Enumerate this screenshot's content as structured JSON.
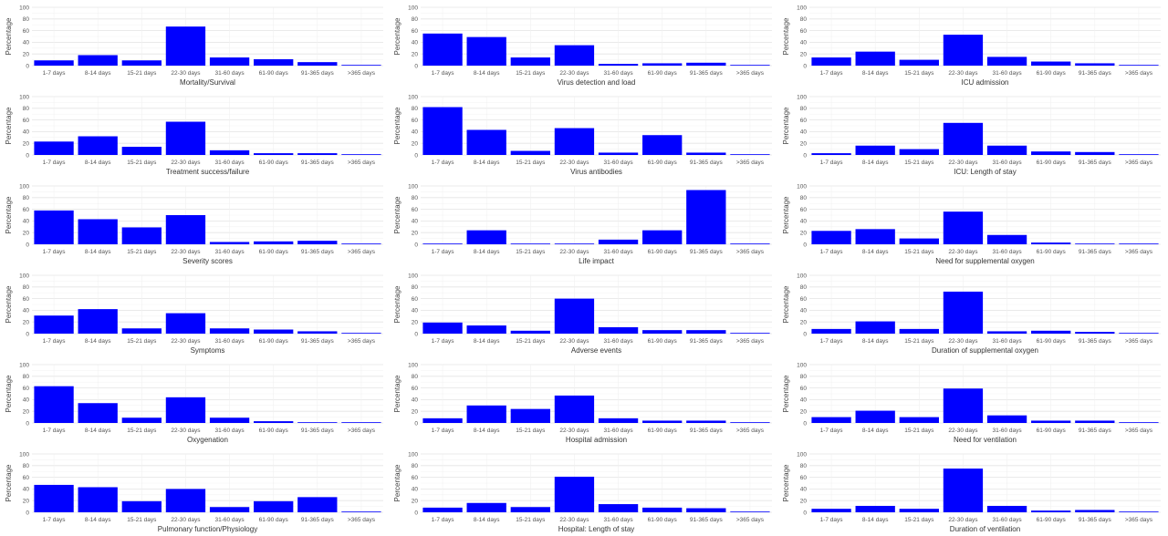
{
  "ylabel": "Percentage",
  "yticks": [
    "0",
    "20",
    "40",
    "60",
    "80",
    "100"
  ],
  "chart_data": [
    {
      "type": "bar",
      "title": "Mortality/Survival",
      "ylabel": "Percentage",
      "ylim": [
        0,
        100
      ],
      "categories": [
        "1-7 days",
        "8-14 days",
        "15-21 days",
        "22-30 days",
        "31-60 days",
        "61-90 days",
        "91-365 days",
        ">365 days"
      ],
      "values": [
        9,
        18,
        9,
        67,
        14,
        11,
        6,
        1
      ],
      "color": "#0000ff"
    },
    {
      "type": "bar",
      "title": "Virus detection and load",
      "ylabel": "Percentage",
      "ylim": [
        0,
        100
      ],
      "categories": [
        "1-7 days",
        "8-14 days",
        "15-21 days",
        "22-30 days",
        "31-60 days",
        "61-90 days",
        "91-365 days",
        ">365 days"
      ],
      "values": [
        55,
        49,
        14,
        35,
        3,
        4,
        5,
        1
      ],
      "color": "#0000ff"
    },
    {
      "type": "bar",
      "title": "ICU admission",
      "ylabel": "Percentage",
      "ylim": [
        0,
        100
      ],
      "categories": [
        "1-7 days",
        "8-14 days",
        "15-21 days",
        "22-30 days",
        "31-60 days",
        "61-90 days",
        "91-365 days",
        ">365 days"
      ],
      "values": [
        14,
        24,
        10,
        53,
        15,
        7,
        4,
        1
      ],
      "color": "#0000ff"
    },
    {
      "type": "bar",
      "title": "Treatment success/failure",
      "ylabel": "Percentage",
      "ylim": [
        0,
        100
      ],
      "categories": [
        "1-7 days",
        "8-14 days",
        "15-21 days",
        "22-30 days",
        "31-60 days",
        "61-90 days",
        "91-365 days",
        ">365 days"
      ],
      "values": [
        23,
        32,
        14,
        57,
        8,
        3,
        3,
        1
      ],
      "color": "#0000ff"
    },
    {
      "type": "bar",
      "title": "Virus antibodies",
      "ylabel": "Percentage",
      "ylim": [
        0,
        100
      ],
      "categories": [
        "1-7 days",
        "8-14 days",
        "15-21 days",
        "22-30 days",
        "31-60 days",
        "61-90 days",
        "91-365 days",
        ">365 days"
      ],
      "values": [
        82,
        43,
        7,
        46,
        4,
        34,
        4,
        1
      ],
      "color": "#0000ff"
    },
    {
      "type": "bar",
      "title": "ICU: Length of stay",
      "ylabel": "Percentage",
      "ylim": [
        0,
        100
      ],
      "categories": [
        "1-7 days",
        "8-14 days",
        "15-21 days",
        "22-30 days",
        "31-60 days",
        "61-90 days",
        "91-365 days",
        ">365 days"
      ],
      "values": [
        3,
        16,
        10,
        55,
        16,
        6,
        5,
        1
      ],
      "color": "#0000ff"
    },
    {
      "type": "bar",
      "title": "Severity scores",
      "ylabel": "Percentage",
      "ylim": [
        0,
        100
      ],
      "categories": [
        "1-7 days",
        "8-14 days",
        "15-21 days",
        "22-30 days",
        "31-60 days",
        "61-90 days",
        "91-365 days",
        ">365 days"
      ],
      "values": [
        58,
        43,
        29,
        50,
        4,
        5,
        6,
        1
      ],
      "color": "#0000ff"
    },
    {
      "type": "bar",
      "title": "Life impact",
      "ylabel": "Percentage",
      "ylim": [
        0,
        100
      ],
      "categories": [
        "1-7 days",
        "8-14 days",
        "15-21 days",
        "22-30 days",
        "31-60 days",
        "61-90 days",
        "91-365 days",
        ">365 days"
      ],
      "values": [
        0,
        24,
        0,
        0,
        8,
        24,
        93,
        0
      ],
      "color": "#0000ff"
    },
    {
      "type": "bar",
      "title": "Need for supplemental oxygen",
      "ylabel": "Percentage",
      "ylim": [
        0,
        100
      ],
      "categories": [
        "1-7 days",
        "8-14 days",
        "15-21 days",
        "22-30 days",
        "31-60 days",
        "61-90 days",
        "91-365 days",
        ">365 days"
      ],
      "values": [
        23,
        26,
        10,
        56,
        16,
        3,
        1,
        1
      ],
      "color": "#0000ff"
    },
    {
      "type": "bar",
      "title": "Symptoms",
      "ylabel": "Percentage",
      "ylim": [
        0,
        100
      ],
      "categories": [
        "1-7 days",
        "8-14 days",
        "15-21 days",
        "22-30 days",
        "31-60 days",
        "61-90 days",
        "91-365 days",
        ">365 days"
      ],
      "values": [
        31,
        42,
        9,
        35,
        9,
        7,
        4,
        1
      ],
      "color": "#0000ff"
    },
    {
      "type": "bar",
      "title": "Adverse events",
      "ylabel": "Percentage",
      "ylim": [
        0,
        100
      ],
      "categories": [
        "1-7 days",
        "8-14 days",
        "15-21 days",
        "22-30 days",
        "31-60 days",
        "61-90 days",
        "91-365 days",
        ">365 days"
      ],
      "values": [
        19,
        14,
        5,
        60,
        11,
        6,
        6,
        1
      ],
      "color": "#0000ff"
    },
    {
      "type": "bar",
      "title": "Duration of supplemental oxygen",
      "ylabel": "Percentage",
      "ylim": [
        0,
        100
      ],
      "categories": [
        "1-7 days",
        "8-14 days",
        "15-21 days",
        "22-30 days",
        "31-60 days",
        "61-90 days",
        "91-365 days",
        ">365 days"
      ],
      "values": [
        8,
        21,
        8,
        72,
        4,
        5,
        3,
        1
      ],
      "color": "#0000ff"
    },
    {
      "type": "bar",
      "title": "Oxygenation",
      "ylabel": "Percentage",
      "ylim": [
        0,
        100
      ],
      "categories": [
        "1-7 days",
        "8-14 days",
        "15-21 days",
        "22-30 days",
        "31-60 days",
        "61-90 days",
        "91-365 days",
        ">365 days"
      ],
      "values": [
        63,
        34,
        9,
        44,
        9,
        3,
        1,
        1
      ],
      "color": "#0000ff"
    },
    {
      "type": "bar",
      "title": "Hospital admission",
      "ylabel": "Percentage",
      "ylim": [
        0,
        100
      ],
      "categories": [
        "1-7 days",
        "8-14 days",
        "15-21 days",
        "22-30 days",
        "31-60 days",
        "61-90 days",
        "91-365 days",
        ">365 days"
      ],
      "values": [
        8,
        30,
        24,
        47,
        8,
        4,
        4,
        1
      ],
      "color": "#0000ff"
    },
    {
      "type": "bar",
      "title": "Need for ventilation",
      "ylabel": "Percentage",
      "ylim": [
        0,
        100
      ],
      "categories": [
        "1-7 days",
        "8-14 days",
        "15-21 days",
        "22-30 days",
        "31-60 days",
        "61-90 days",
        "91-365 days",
        ">365 days"
      ],
      "values": [
        10,
        21,
        10,
        59,
        13,
        4,
        4,
        1
      ],
      "color": "#0000ff"
    },
    {
      "type": "bar",
      "title": "Pulmonary function/Physiology",
      "ylabel": "Percentage",
      "ylim": [
        0,
        100
      ],
      "categories": [
        "1-7 days",
        "8-14 days",
        "15-21 days",
        "22-30 days",
        "31-60 days",
        "61-90 days",
        "91-365 days",
        ">365 days"
      ],
      "values": [
        47,
        43,
        19,
        40,
        9,
        19,
        26,
        1
      ],
      "color": "#0000ff"
    },
    {
      "type": "bar",
      "title": "Hospital: Length of stay",
      "ylabel": "Percentage",
      "ylim": [
        0,
        100
      ],
      "categories": [
        "1-7 days",
        "8-14 days",
        "15-21 days",
        "22-30 days",
        "31-60 days",
        "61-90 days",
        "91-365 days",
        ">365 days"
      ],
      "values": [
        8,
        16,
        9,
        61,
        14,
        8,
        7,
        1
      ],
      "color": "#0000ff"
    },
    {
      "type": "bar",
      "title": "Duration of ventilation",
      "ylabel": "Percentage",
      "ylim": [
        0,
        100
      ],
      "categories": [
        "1-7 days",
        "8-14 days",
        "15-21 days",
        "22-30 days",
        "31-60 days",
        "61-90 days",
        "91-365 days",
        ">365 days"
      ],
      "values": [
        6,
        11,
        6,
        75,
        11,
        3,
        4,
        1
      ],
      "color": "#0000ff"
    }
  ]
}
